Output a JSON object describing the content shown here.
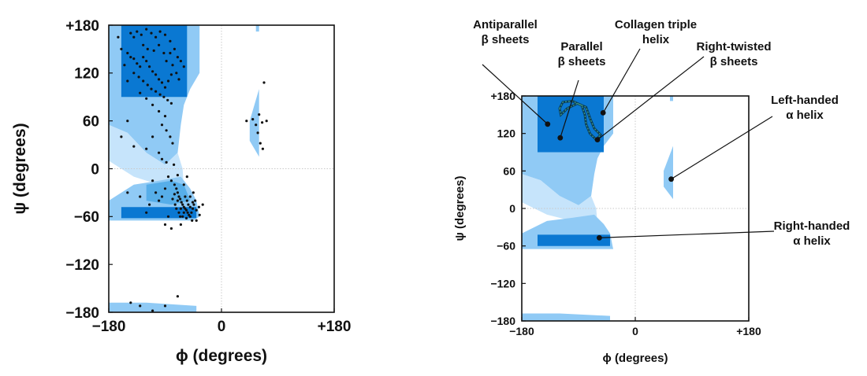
{
  "colors": {
    "allowed_outer": "#90caf5",
    "allowed_mid": "#57aee9",
    "allowed_core": "#0a78d2",
    "bridge": "#c6e4fb",
    "points": "#111111",
    "frame": "#111111",
    "grid": "#c9c9c9",
    "leader": "#111111"
  },
  "chart_data": [
    {
      "type": "scatter",
      "xlabel": "ϕ (degrees)",
      "ylabel": "ψ (degrees)",
      "xlim": [
        -180,
        180
      ],
      "ylim": [
        -180,
        180
      ],
      "x_ticks": [
        "−180",
        "0",
        "+180"
      ],
      "y_ticks": [
        "+180",
        "120",
        "60",
        "0",
        "−60",
        "−120",
        "−180"
      ],
      "grid": "dotted lines at ϕ = 0 and ψ = 0",
      "legend": "none",
      "regions": [
        {
          "name": "beta-region-outer",
          "level": "outer",
          "polygon": [
            [
              -180,
              180
            ],
            [
              -140,
              180
            ],
            [
              -35,
              180
            ],
            [
              -35,
              120
            ],
            [
              -50,
              100
            ],
            [
              -60,
              80
            ],
            [
              -65,
              55
            ],
            [
              -70,
              20
            ],
            [
              -90,
              5
            ],
            [
              -120,
              20
            ],
            [
              -150,
              45
            ],
            [
              -180,
              55
            ]
          ]
        },
        {
          "name": "beta-region-core",
          "level": "core",
          "polygon": [
            [
              -160,
              180
            ],
            [
              -55,
              180
            ],
            [
              -55,
              90
            ],
            [
              -160,
              90
            ]
          ]
        },
        {
          "name": "bridge-region",
          "level": "bridge",
          "polygon": [
            [
              -180,
              55
            ],
            [
              -150,
              45
            ],
            [
              -120,
              20
            ],
            [
              -90,
              5
            ],
            [
              -70,
              20
            ],
            [
              -62,
              0
            ],
            [
              -60,
              -25
            ],
            [
              -100,
              -20
            ],
            [
              -140,
              -10
            ],
            [
              -180,
              10
            ]
          ]
        },
        {
          "name": "alpha-region-outer",
          "level": "outer",
          "polygon": [
            [
              -180,
              -40
            ],
            [
              -140,
              -20
            ],
            [
              -100,
              -15
            ],
            [
              -65,
              -10
            ],
            [
              -50,
              -25
            ],
            [
              -40,
              -40
            ],
            [
              -35,
              -60
            ],
            [
              -45,
              -65
            ],
            [
              -180,
              -65
            ]
          ]
        },
        {
          "name": "alpha-region-core",
          "level": "core",
          "polygon": [
            [
              -160,
              -48
            ],
            [
              -40,
              -48
            ],
            [
              -40,
              -62
            ],
            [
              -160,
              -62
            ]
          ]
        },
        {
          "name": "alpha-bridge",
          "level": "mid",
          "polygon": [
            [
              -120,
              -20
            ],
            [
              -80,
              -15
            ],
            [
              -60,
              -20
            ],
            [
              -50,
              -40
            ],
            [
              -80,
              -45
            ],
            [
              -120,
              -40
            ]
          ]
        },
        {
          "name": "left-handed-region",
          "level": "outer",
          "polygon": [
            [
              45,
              60
            ],
            [
              60,
              100
            ],
            [
              60,
              15
            ],
            [
              45,
              35
            ]
          ]
        },
        {
          "name": "top-small-region",
          "level": "outer",
          "polygon": [
            [
              55,
              180
            ],
            [
              60,
              180
            ],
            [
              60,
              172
            ],
            [
              55,
              172
            ]
          ]
        },
        {
          "name": "bottom-strip",
          "level": "outer",
          "polygon": [
            [
              -180,
              -168
            ],
            [
              -120,
              -168
            ],
            [
              -40,
              -172
            ],
            [
              -40,
              -180
            ],
            [
              -180,
              -180
            ]
          ]
        }
      ],
      "points": [
        [
          -145,
          170
        ],
        [
          -140,
          165
        ],
        [
          -135,
          172
        ],
        [
          -128,
          168
        ],
        [
          -120,
          175
        ],
        [
          -112,
          170
        ],
        [
          -105,
          165
        ],
        [
          -98,
          172
        ],
        [
          -90,
          168
        ],
        [
          -82,
          160
        ],
        [
          -75,
          150
        ],
        [
          -70,
          140
        ],
        [
          -65,
          135
        ],
        [
          -60,
          128
        ],
        [
          -150,
          145
        ],
        [
          -145,
          140
        ],
        [
          -140,
          138
        ],
        [
          -135,
          132
        ],
        [
          -130,
          128
        ],
        [
          -125,
          140
        ],
        [
          -120,
          135
        ],
        [
          -115,
          128
        ],
        [
          -110,
          122
        ],
        [
          -105,
          118
        ],
        [
          -100,
          112
        ],
        [
          -95,
          108
        ],
        [
          -90,
          102
        ],
        [
          -85,
          110
        ],
        [
          -80,
          118
        ],
        [
          -78,
          130
        ],
        [
          -72,
          120
        ],
        [
          -68,
          112
        ],
        [
          -140,
          120
        ],
        [
          -132,
          115
        ],
        [
          -125,
          110
        ],
        [
          -118,
          105
        ],
        [
          -112,
          100
        ],
        [
          -105,
          97
        ],
        [
          -98,
          93
        ],
        [
          -92,
          90
        ],
        [
          -86,
          86
        ],
        [
          -80,
          82
        ],
        [
          -150,
          110
        ],
        [
          -155,
          130
        ],
        [
          -160,
          150
        ],
        [
          -165,
          165
        ],
        [
          -125,
          155
        ],
        [
          -118,
          150
        ],
        [
          -108,
          148
        ],
        [
          -100,
          155
        ],
        [
          -92,
          145
        ],
        [
          -88,
          135
        ],
        [
          -82,
          145
        ],
        [
          -130,
          95
        ],
        [
          -120,
          88
        ],
        [
          -110,
          80
        ],
        [
          -100,
          72
        ],
        [
          -90,
          66
        ],
        [
          -95,
          55
        ],
        [
          -88,
          48
        ],
        [
          -82,
          40
        ],
        [
          -78,
          32
        ],
        [
          -110,
          40
        ],
        [
          -120,
          25
        ],
        [
          -100,
          20
        ],
        [
          -95,
          12
        ],
        [
          -88,
          8
        ],
        [
          -140,
          28
        ],
        [
          -150,
          60
        ],
        [
          -160,
          40
        ],
        [
          -85,
          -10
        ],
        [
          -80,
          -15
        ],
        [
          -75,
          -20
        ],
        [
          -72,
          -25
        ],
        [
          -70,
          -30
        ],
        [
          -68,
          -35
        ],
        [
          -66,
          -38
        ],
        [
          -64,
          -42
        ],
        [
          -62,
          -45
        ],
        [
          -60,
          -48
        ],
        [
          -58,
          -50
        ],
        [
          -56,
          -52
        ],
        [
          -54,
          -55
        ],
        [
          -52,
          -58
        ],
        [
          -50,
          -60
        ],
        [
          -48,
          -55
        ],
        [
          -46,
          -50
        ],
        [
          -44,
          -45
        ],
        [
          -42,
          -40
        ],
        [
          -75,
          -32
        ],
        [
          -70,
          -40
        ],
        [
          -65,
          -50
        ],
        [
          -60,
          -55
        ],
        [
          -55,
          -40
        ],
        [
          -50,
          -35
        ],
        [
          -45,
          -30
        ],
        [
          -78,
          -38
        ],
        [
          -74,
          -45
        ],
        [
          -68,
          -55
        ],
        [
          -62,
          -60
        ],
        [
          -56,
          -62
        ],
        [
          -50,
          -48
        ],
        [
          -46,
          -42
        ],
        [
          -40,
          -52
        ],
        [
          -36,
          -48
        ],
        [
          -72,
          -50
        ],
        [
          -66,
          -60
        ],
        [
          -58,
          -35
        ],
        [
          -53,
          -45
        ],
        [
          -47,
          -65
        ],
        [
          -90,
          -25
        ],
        [
          -95,
          -35
        ],
        [
          -100,
          -40
        ],
        [
          -105,
          -30
        ],
        [
          -110,
          -15
        ],
        [
          -115,
          -45
        ],
        [
          -120,
          -55
        ],
        [
          -130,
          -35
        ],
        [
          -150,
          -30
        ],
        [
          -85,
          -60
        ],
        [
          -90,
          -70
        ],
        [
          -80,
          -75
        ],
        [
          -65,
          -70
        ],
        [
          -40,
          -65
        ],
        [
          -30,
          -45
        ],
        [
          -35,
          -58
        ],
        [
          -60,
          -20
        ],
        [
          -55,
          -10
        ],
        [
          -70,
          -8
        ],
        [
          -76,
          5
        ],
        [
          40,
          60
        ],
        [
          50,
          62
        ],
        [
          55,
          55
        ],
        [
          60,
          68
        ],
        [
          65,
          58
        ],
        [
          72,
          60
        ],
        [
          58,
          45
        ],
        [
          62,
          32
        ],
        [
          66,
          25
        ],
        [
          68,
          108
        ],
        [
          -145,
          -168
        ],
        [
          -130,
          -172
        ],
        [
          -110,
          -178
        ],
        [
          -90,
          -172
        ],
        [
          -70,
          -160
        ]
      ]
    },
    {
      "type": "scatter",
      "xlabel": "ϕ (degrees)",
      "ylabel": "ψ (degrees)",
      "xlim": [
        -180,
        180
      ],
      "ylim": [
        -180,
        180
      ],
      "x_ticks": [
        "−180",
        "0",
        "+180"
      ],
      "y_ticks": [
        "+180",
        "120",
        "60",
        "0",
        "−60",
        "−120",
        "−180"
      ],
      "grid": "dotted lines at ϕ = 0 and ψ = 0",
      "legend": "none",
      "regions": [
        {
          "name": "beta-region-outer",
          "level": "outer",
          "polygon": [
            [
              -180,
              180
            ],
            [
              -35,
              180
            ],
            [
              -35,
              120
            ],
            [
              -50,
              100
            ],
            [
              -60,
              80
            ],
            [
              -65,
              55
            ],
            [
              -70,
              20
            ],
            [
              -90,
              5
            ],
            [
              -120,
              20
            ],
            [
              -150,
              45
            ],
            [
              -180,
              55
            ]
          ]
        },
        {
          "name": "beta-region-core",
          "level": "core",
          "polygon": [
            [
              -155,
              180
            ],
            [
              -50,
              180
            ],
            [
              -50,
              90
            ],
            [
              -155,
              90
            ]
          ]
        },
        {
          "name": "bridge-region",
          "level": "bridge",
          "polygon": [
            [
              -180,
              55
            ],
            [
              -150,
              45
            ],
            [
              -120,
              20
            ],
            [
              -90,
              5
            ],
            [
              -70,
              20
            ],
            [
              -62,
              0
            ],
            [
              -60,
              -25
            ],
            [
              -100,
              -20
            ],
            [
              -140,
              -10
            ],
            [
              -180,
              10
            ]
          ]
        },
        {
          "name": "alpha-region-outer",
          "level": "outer",
          "polygon": [
            [
              -180,
              -40
            ],
            [
              -140,
              -20
            ],
            [
              -100,
              -15
            ],
            [
              -65,
              -10
            ],
            [
              -50,
              -25
            ],
            [
              -40,
              -40
            ],
            [
              -35,
              -65
            ],
            [
              -180,
              -65
            ]
          ]
        },
        {
          "name": "alpha-region-core",
          "level": "core",
          "polygon": [
            [
              -155,
              -42
            ],
            [
              -40,
              -42
            ],
            [
              -40,
              -60
            ],
            [
              -155,
              -60
            ]
          ]
        },
        {
          "name": "left-handed-region",
          "level": "outer",
          "polygon": [
            [
              45,
              60
            ],
            [
              60,
              100
            ],
            [
              60,
              15
            ],
            [
              45,
              35
            ]
          ]
        },
        {
          "name": "top-small-region",
          "level": "outer",
          "polygon": [
            [
              55,
              180
            ],
            [
              60,
              180
            ],
            [
              60,
              172
            ],
            [
              55,
              172
            ]
          ]
        },
        {
          "name": "bottom-strip",
          "level": "outer",
          "polygon": [
            [
              -180,
              -168
            ],
            [
              -120,
              -168
            ],
            [
              -40,
              -172
            ],
            [
              -40,
              -180
            ],
            [
              -180,
              -180
            ]
          ]
        }
      ],
      "points": [
        {
          "label": "antiparallel",
          "phi": -139,
          "psi": 135
        },
        {
          "label": "parallel",
          "phi": -119,
          "psi": 113
        },
        {
          "label": "collagen",
          "phi": -51,
          "psi": 153
        },
        {
          "label": "right-twisted",
          "phi": -60,
          "psi": 110
        },
        {
          "label": "left-handed-alpha",
          "phi": 57,
          "psi": 47
        },
        {
          "label": "right-handed-alpha",
          "phi": -57,
          "psi": -47
        }
      ],
      "loop": [
        [
          -120,
          160
        ],
        [
          -115,
          170
        ],
        [
          -100,
          172
        ],
        [
          -85,
          165
        ],
        [
          -80,
          150
        ],
        [
          -78,
          135
        ],
        [
          -72,
          120
        ],
        [
          -62,
          110
        ],
        [
          -55,
          118
        ],
        [
          -65,
          128
        ],
        [
          -72,
          145
        ],
        [
          -78,
          162
        ],
        [
          -92,
          168
        ],
        [
          -108,
          160
        ],
        [
          -118,
          150
        ]
      ],
      "annotations": [
        {
          "id": "antiparallel",
          "lines": [
            "Antiparallel",
            "β sheets"
          ]
        },
        {
          "id": "parallel",
          "lines": [
            "Parallel",
            "β sheets"
          ]
        },
        {
          "id": "collagen",
          "lines": [
            "Collagen triple",
            "helix"
          ]
        },
        {
          "id": "right-twisted",
          "lines": [
            "Right-twisted",
            "β sheets"
          ]
        },
        {
          "id": "left-handed-alpha",
          "lines": [
            "Left-handed",
            "α helix"
          ]
        },
        {
          "id": "right-handed-alpha",
          "lines": [
            "Right-handed",
            "α helix"
          ]
        }
      ]
    }
  ]
}
